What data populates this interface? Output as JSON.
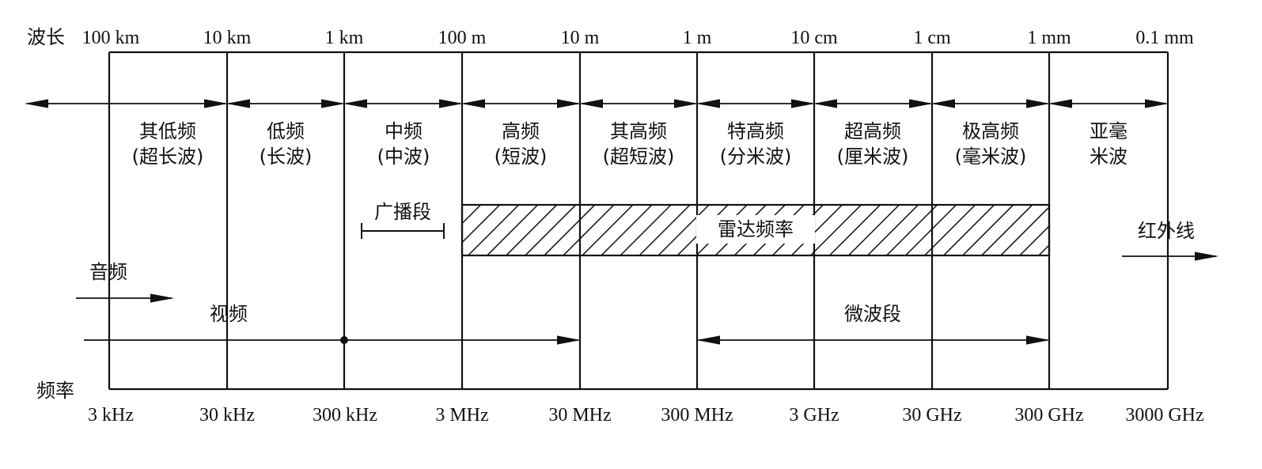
{
  "wavelength_axis": {
    "label": "波长",
    "ticks": [
      "100 km",
      "10 km",
      "1 km",
      "100 m",
      "10 m",
      "1 m",
      "10 cm",
      "1 cm",
      "1 mm",
      "0.1 mm"
    ]
  },
  "frequency_axis": {
    "label": "频率",
    "ticks": [
      "3 kHz",
      "30 kHz",
      "300 kHz",
      "3 MHz",
      "30 MHz",
      "300 MHz",
      "3 GHz",
      "30 GHz",
      "300 GHz",
      "3000 GHz"
    ]
  },
  "bands": [
    {
      "line1": "其低频",
      "line2": "(超长波)"
    },
    {
      "line1": "低频",
      "line2": "(长波)"
    },
    {
      "line1": "中频",
      "line2": "(中波)"
    },
    {
      "line1": "高频",
      "line2": "(短波)"
    },
    {
      "line1": "其高频",
      "line2": "(超短波)"
    },
    {
      "line1": "特高频",
      "line2": "(分米波)"
    },
    {
      "line1": "超高频",
      "line2": "(厘米波)"
    },
    {
      "line1": "极高频",
      "line2": "(毫米波)"
    },
    {
      "line1": "亚毫",
      "line2": "米波"
    }
  ],
  "annotations": {
    "broadcast": "广播段",
    "radar": "雷达频率",
    "infrared": "红外线",
    "audio": "音频",
    "video": "视频",
    "microwave": "微波段"
  },
  "colors": {
    "ink": "#111111",
    "background": "#ffffff"
  }
}
